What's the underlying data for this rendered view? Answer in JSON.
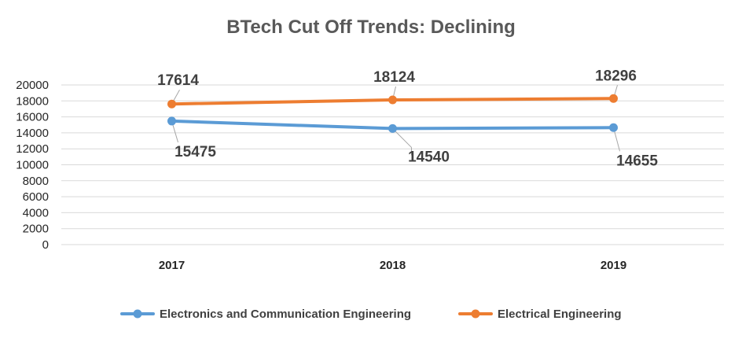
{
  "chart_data": {
    "type": "line",
    "title": "BTech Cut Off Trends: Declining",
    "xlabel": "",
    "ylabel": "",
    "categories": [
      "2017",
      "2018",
      "2019"
    ],
    "ylim": [
      0,
      20000
    ],
    "yticks": [
      0,
      2000,
      4000,
      6000,
      8000,
      10000,
      12000,
      14000,
      16000,
      18000,
      20000
    ],
    "grid": true,
    "legend_position": "bottom",
    "series": [
      {
        "name": "Electronics and Communication Engineering",
        "values": [
          15475,
          14540,
          14655
        ],
        "labels": [
          "15475",
          "14540",
          "14655"
        ],
        "color": "#5B9BD5"
      },
      {
        "name": "Electrical Engineering",
        "values": [
          17614,
          18124,
          18296
        ],
        "labels": [
          "17614",
          "18124",
          "18296"
        ],
        "color": "#ED7D31"
      }
    ]
  }
}
